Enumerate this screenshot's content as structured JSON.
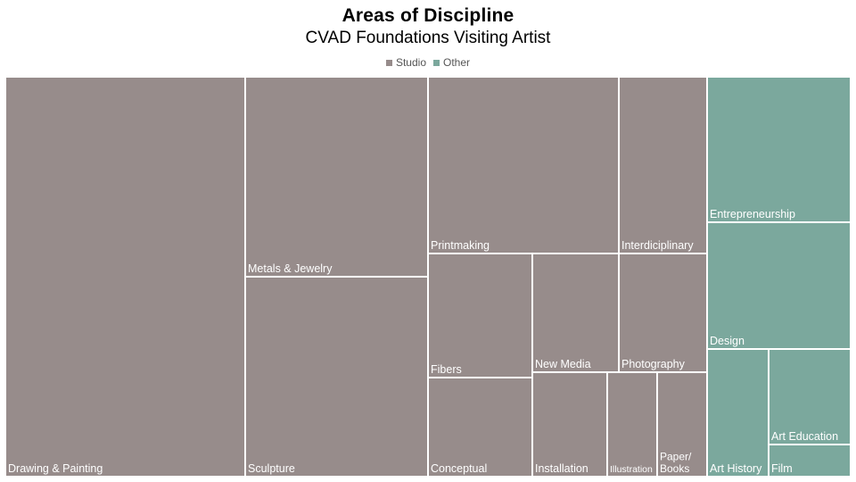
{
  "chart_data": {
    "type": "treemap",
    "title": "Areas of Discipline",
    "subtitle": "CVAD Foundations Visiting Artist",
    "legend": [
      {
        "name": "Studio",
        "color": "#978c8b"
      },
      {
        "name": "Other",
        "color": "#7ba89d"
      }
    ],
    "series": [
      {
        "name": "Studio",
        "color": "#978c8b",
        "items": [
          {
            "label": "Drawing & Painting",
            "value": 119
          },
          {
            "label": "Metals & Jewelry",
            "value": 46
          },
          {
            "label": "Sculpture",
            "value": 46
          },
          {
            "label": "Printmaking",
            "value": 42
          },
          {
            "label": "Interdiciplinary",
            "value": 19
          },
          {
            "label": "Fibers",
            "value": 16
          },
          {
            "label": "Conceptual",
            "value": 13
          },
          {
            "label": "New Media",
            "value": 12
          },
          {
            "label": "Photography",
            "value": 13
          },
          {
            "label": "Installation",
            "value": 10
          },
          {
            "label": "Illustration",
            "value": 6
          },
          {
            "label": "Paper/\nBooks",
            "value": 6
          }
        ]
      },
      {
        "name": "Other",
        "color": "#7ba89d",
        "items": [
          {
            "label": "Entrepreneurship",
            "value": 21
          },
          {
            "label": "Design",
            "value": 19
          },
          {
            "label": "Art History",
            "value": 10
          },
          {
            "label": "Art Education",
            "value": 8
          },
          {
            "label": "Film",
            "value": 4
          }
        ]
      }
    ]
  }
}
